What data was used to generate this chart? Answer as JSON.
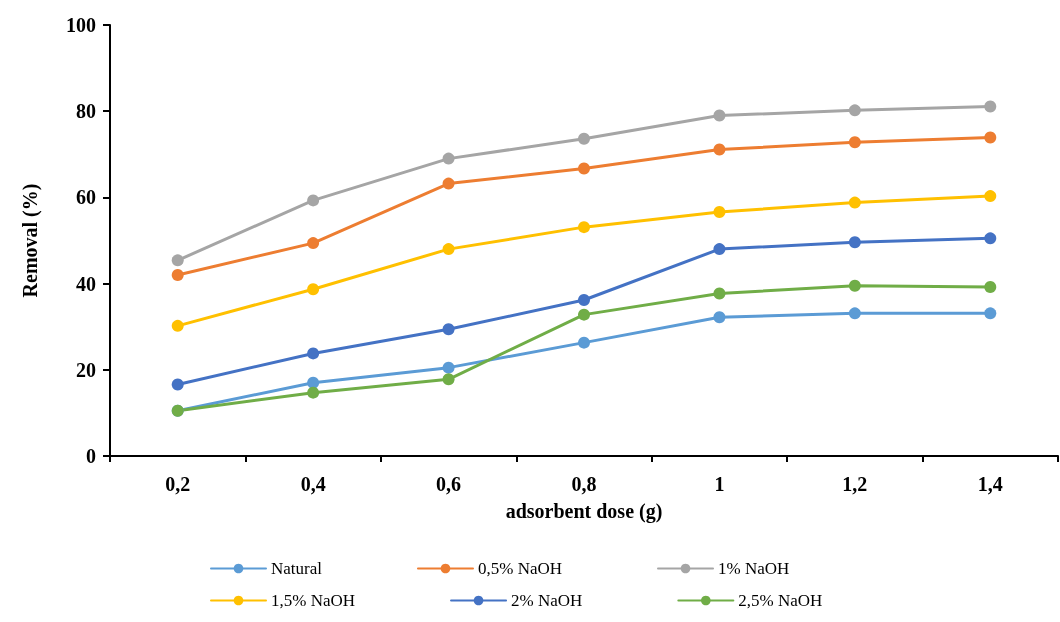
{
  "chart_data": {
    "type": "line",
    "xlabel": "adsorbent dose (g)",
    "ylabel": "Removal (%)",
    "categories": [
      "0,2",
      "0,4",
      "0,6",
      "0,8",
      "1",
      "1,2",
      "1,4"
    ],
    "series": [
      {
        "name": "Natural",
        "color": "#5b9bd5",
        "values": [
          10.5,
          17,
          20.5,
          26.3,
          32.2,
          33.1,
          33.1
        ]
      },
      {
        "name": "0,5% NaOH",
        "color": "#ed7d31",
        "values": [
          42,
          49.4,
          63.2,
          66.7,
          71.1,
          72.8,
          73.9
        ]
      },
      {
        "name": "1% NaOH",
        "color": "#a5a5a5",
        "values": [
          45.4,
          59.3,
          69,
          73.6,
          79,
          80.2,
          81.1
        ]
      },
      {
        "name": "1,5% NaOH",
        "color": "#ffc000",
        "values": [
          30.2,
          38.7,
          48,
          53.1,
          56.6,
          58.8,
          60.3
        ]
      },
      {
        "name": "2% NaOH",
        "color": "#4472c4",
        "values": [
          16.6,
          23.8,
          29.4,
          36.2,
          48,
          49.6,
          50.5
        ]
      },
      {
        "name": "2,5% NaOH",
        "color": "#70ad47",
        "values": [
          10.5,
          14.7,
          17.8,
          32.8,
          37.7,
          39.5,
          39.2
        ]
      }
    ],
    "ylim": [
      0,
      100
    ],
    "yticks": [
      0,
      20,
      40,
      60,
      80,
      100
    ],
    "grid": false,
    "legend": "bottom",
    "marker": "circle",
    "line_style": "solid"
  }
}
